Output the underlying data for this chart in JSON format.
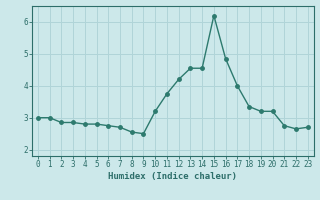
{
  "x": [
    0,
    1,
    2,
    3,
    4,
    5,
    6,
    7,
    8,
    9,
    10,
    11,
    12,
    13,
    14,
    15,
    16,
    17,
    18,
    19,
    20,
    21,
    22,
    23
  ],
  "y": [
    3.0,
    3.0,
    2.85,
    2.85,
    2.8,
    2.8,
    2.75,
    2.7,
    2.55,
    2.5,
    3.2,
    3.75,
    4.2,
    4.55,
    4.55,
    6.2,
    4.85,
    4.0,
    3.35,
    3.2,
    3.2,
    2.75,
    2.65,
    2.7
  ],
  "line_color": "#2d7a6e",
  "marker": "o",
  "markersize": 2.5,
  "linewidth": 1.0,
  "xlabel": "Humidex (Indice chaleur)",
  "xlim": [
    -0.5,
    23.5
  ],
  "ylim": [
    1.8,
    6.5
  ],
  "yticks": [
    2,
    3,
    4,
    5,
    6
  ],
  "xticks": [
    0,
    1,
    2,
    3,
    4,
    5,
    6,
    7,
    8,
    9,
    10,
    11,
    12,
    13,
    14,
    15,
    16,
    17,
    18,
    19,
    20,
    21,
    22,
    23
  ],
  "bg_color": "#cce8ea",
  "grid_color": "#b0d4d8",
  "ax_color": "#2d6e6a",
  "label_fontsize": 6.5,
  "tick_fontsize": 5.5
}
